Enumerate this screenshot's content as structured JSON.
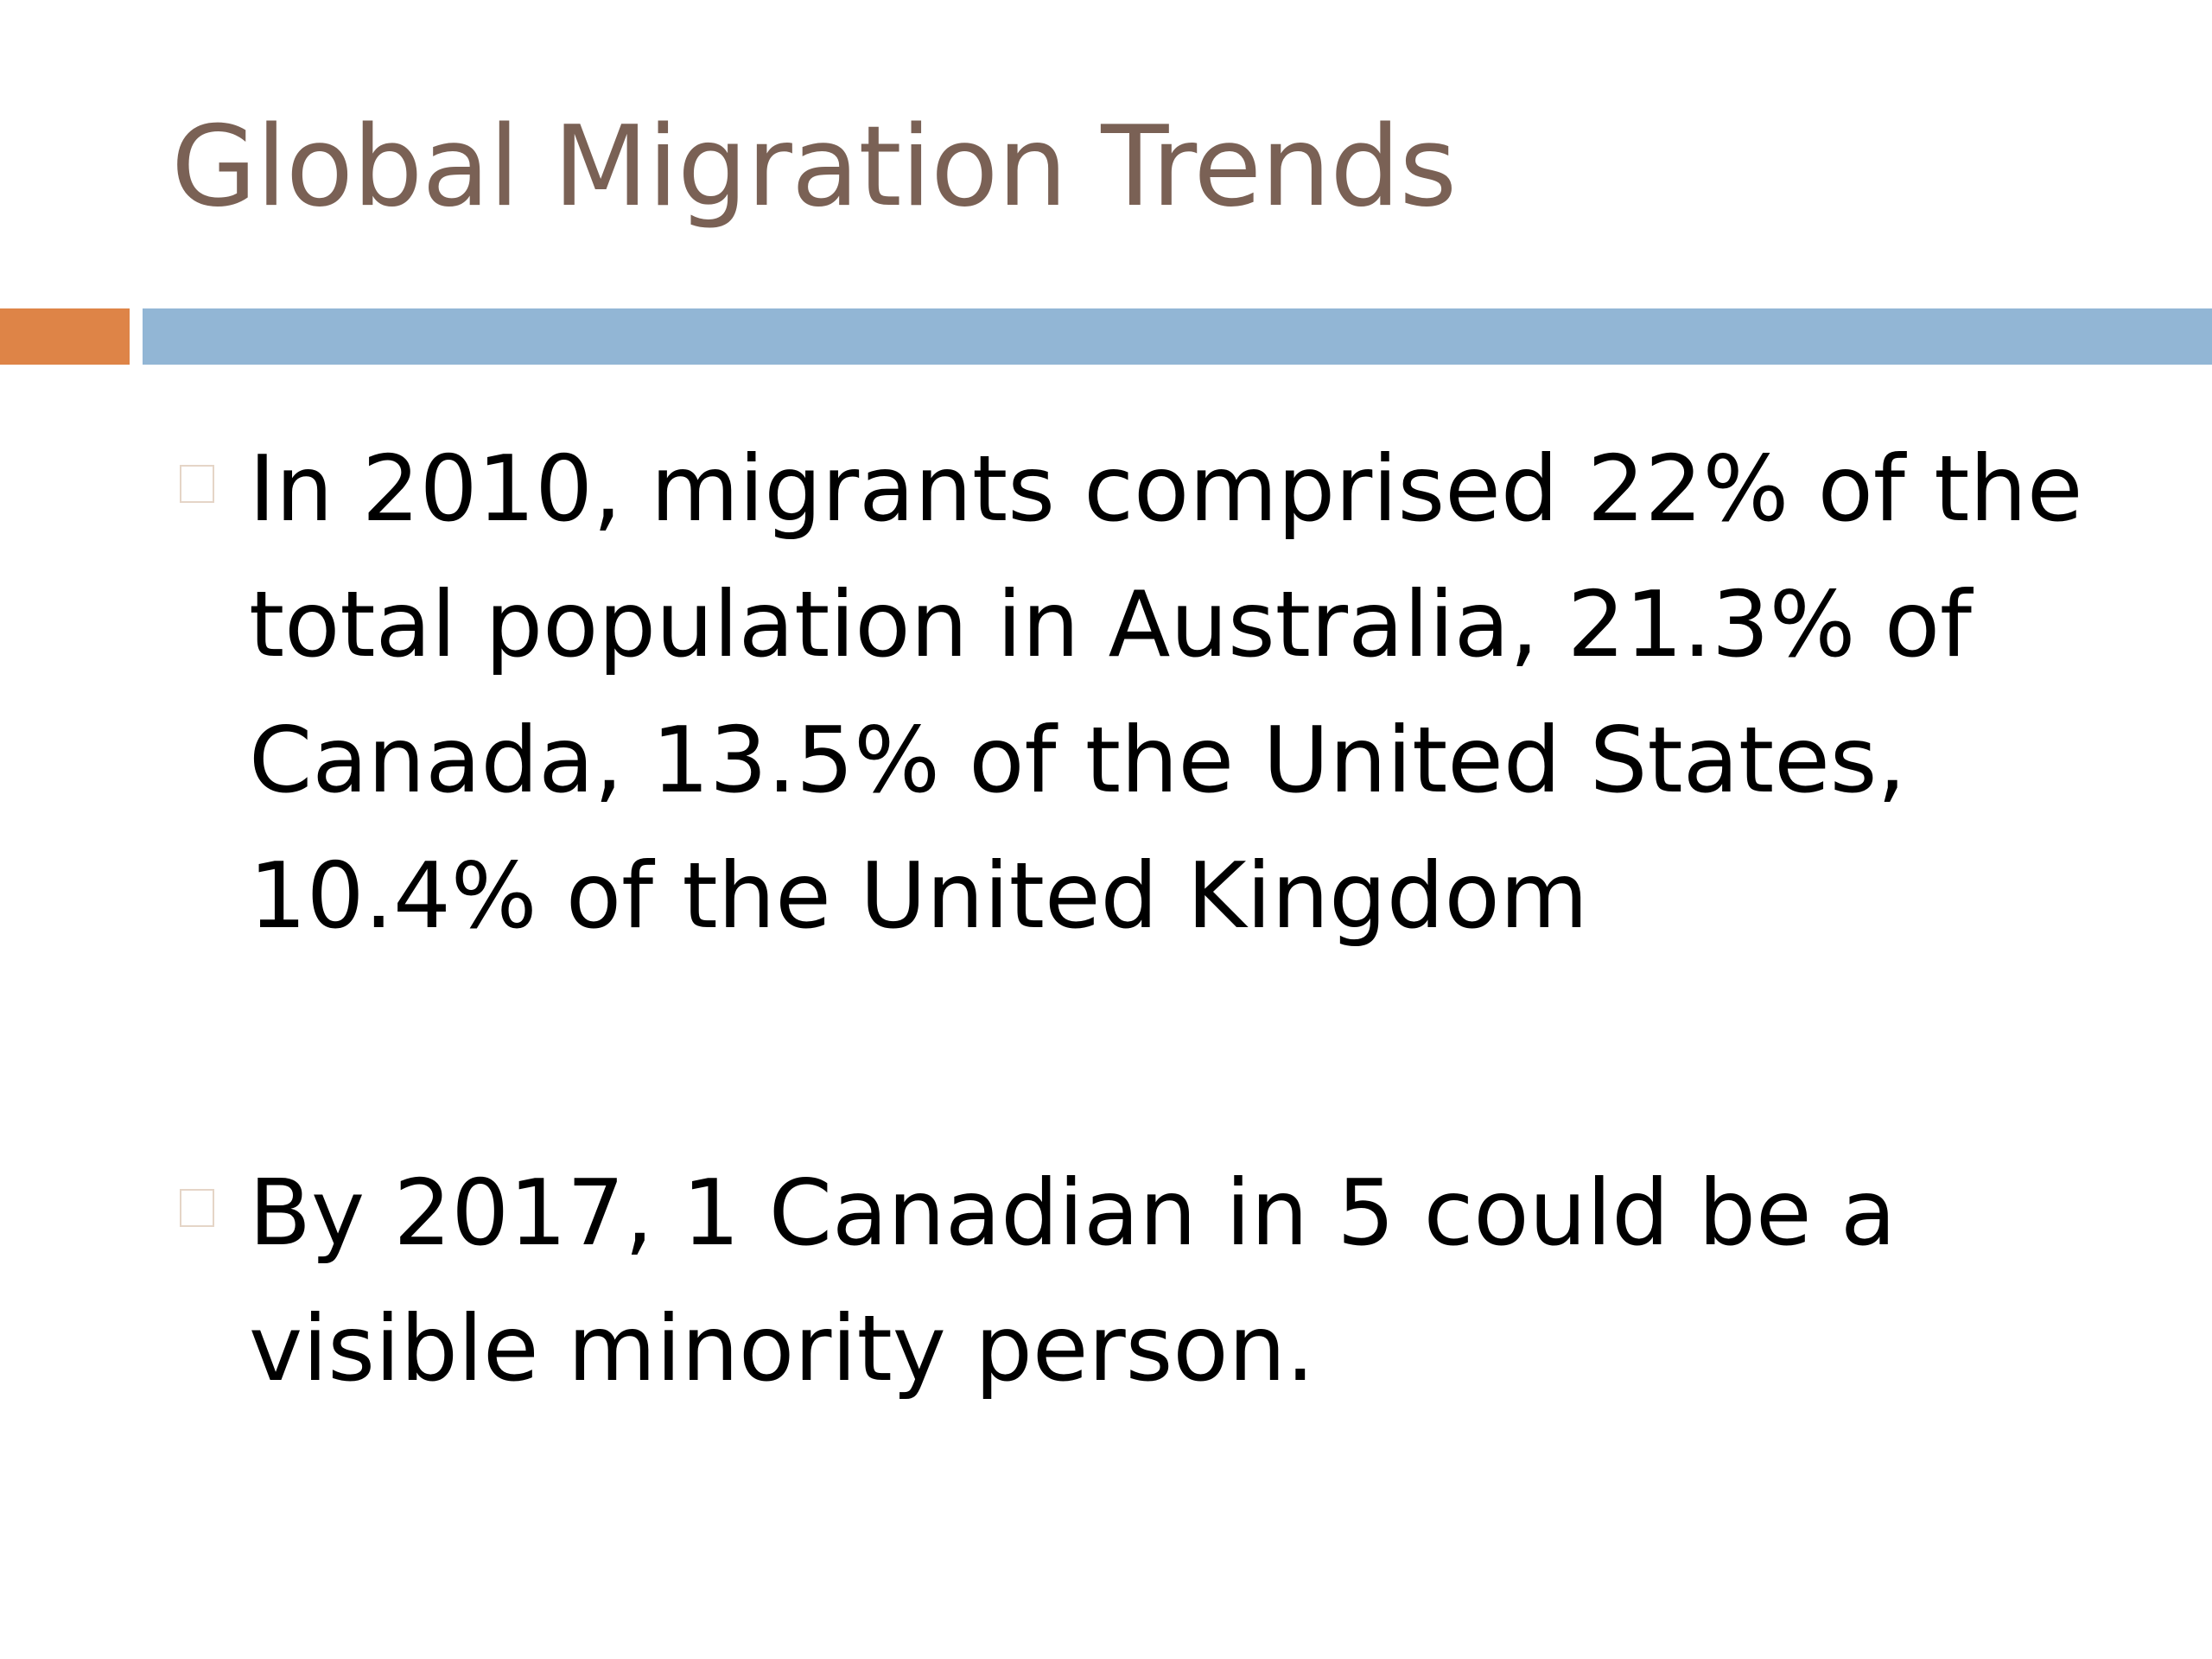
{
  "slide": {
    "title": "Global Migration Trends",
    "bullets": [
      {
        "text": "In 2010, migrants comprised 22% of the total population in Australia, 21.3% of Canada, 13.5% of the United States, 10.4% of the United Kingdom"
      },
      {
        "text": "By 2017, 1 Canadian in 5 could be a visible minority person."
      }
    ]
  },
  "colors": {
    "title": "#7a6155",
    "accent_orange": "#de8447",
    "accent_blue": "#92b6d5",
    "bullet_marker_border": "#e5d5c7",
    "body_text": "#000000"
  },
  "icons": {
    "bullet_marker": "hollow-square-bullet-icon"
  }
}
